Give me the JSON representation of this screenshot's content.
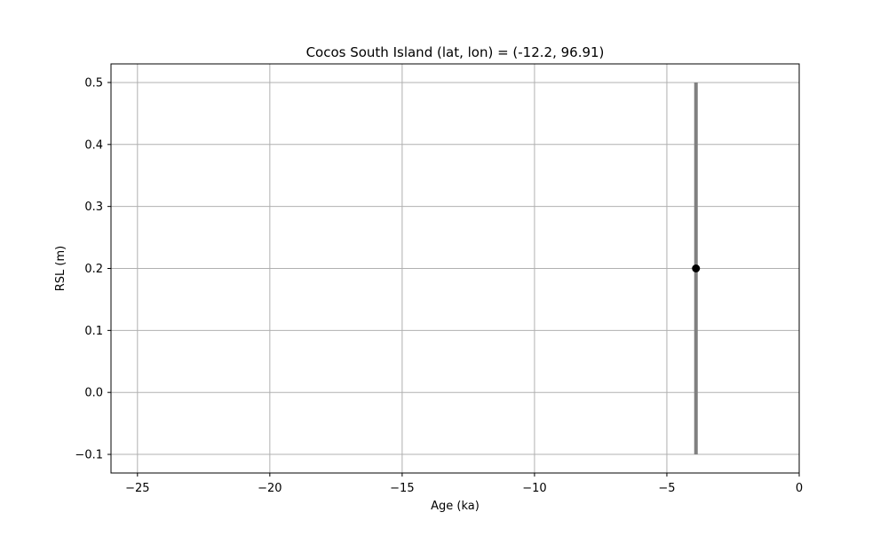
{
  "chart_data": {
    "type": "scatter",
    "title": "Cocos South Island (lat, lon) = (-12.2, 96.91)",
    "xlabel": "Age (ka)",
    "ylabel": "RSL (m)",
    "xlim": [
      -26,
      0
    ],
    "ylim": [
      -0.13,
      0.53
    ],
    "xticks": [
      -25,
      -20,
      -15,
      -10,
      -5,
      0
    ],
    "xtick_labels": [
      "−25",
      "−20",
      "−15",
      "−10",
      "−5",
      "0"
    ],
    "yticks": [
      -0.1,
      0.0,
      0.1,
      0.2,
      0.3,
      0.4,
      0.5
    ],
    "ytick_labels": [
      "−0.1",
      "0.0",
      "0.1",
      "0.2",
      "0.3",
      "0.4",
      "0.5"
    ],
    "grid": true,
    "points": [
      {
        "x": -3.9,
        "y": 0.2,
        "yerr_low": -0.1,
        "yerr_high": 0.5
      }
    ],
    "colors": {
      "point": "#000000",
      "errorbar": "#808080",
      "grid": "#b0b0b0",
      "axes": "#000000"
    }
  }
}
